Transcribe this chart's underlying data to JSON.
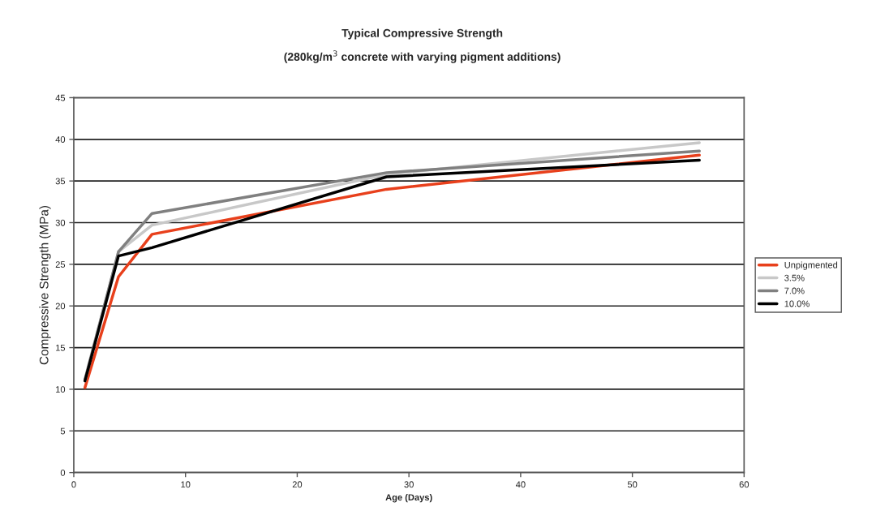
{
  "chart_data": {
    "type": "line",
    "title": "Typical Compressive Strength",
    "subtitle": "(280kg/m$^{3}$ concrete with varying pigment additions)",
    "xlabel": "Age (Days)",
    "ylabel": "Compressive Strength (MPa)",
    "x": [
      1,
      4,
      7,
      28,
      56
    ],
    "series": [
      {
        "name": "Unpigmented",
        "color": "#e8401c",
        "values": [
          10.2,
          23.5,
          28.6,
          34.0,
          38.1
        ]
      },
      {
        "name": "3.5%",
        "color": "#c8c8c8",
        "values": [
          11.0,
          26.5,
          29.7,
          35.8,
          39.6
        ]
      },
      {
        "name": "7.0%",
        "color": "#808080",
        "values": [
          11.2,
          26.5,
          31.1,
          36.0,
          38.6
        ]
      },
      {
        "name": "10.0%",
        "color": "#000000",
        "values": [
          11.0,
          26.0,
          27.0,
          35.5,
          37.5
        ]
      }
    ],
    "xlim": [
      0,
      60
    ],
    "xticks": [
      0,
      10,
      20,
      30,
      40,
      50,
      60
    ],
    "ylim": [
      0,
      45
    ],
    "yticks": [
      0,
      5,
      10,
      15,
      20,
      25,
      30,
      35,
      40,
      45
    ],
    "grid": "y",
    "legend": "right",
    "marker": "none",
    "line_style": "solid"
  }
}
